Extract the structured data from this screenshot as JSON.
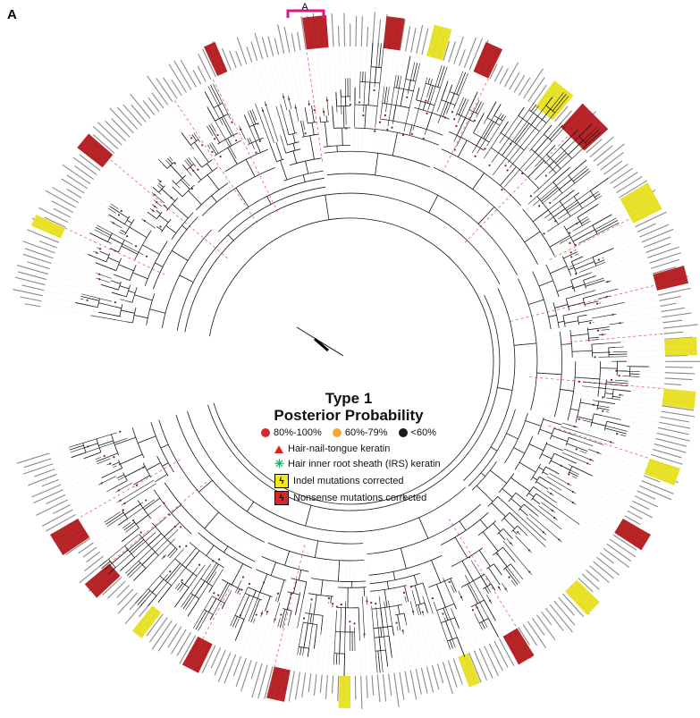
{
  "panel_label": "A",
  "clade_marker": "A",
  "legend": {
    "title_line1": "Type 1",
    "title_line2": "Posterior Probability",
    "pp": [
      {
        "label": "80%-100%",
        "color": "#d7262c"
      },
      {
        "label": "60%-79%",
        "color": "#f4a93c"
      },
      {
        "label": "<60%",
        "color": "#1a1a1a"
      }
    ],
    "hair_nail_tongue": "Hair-nail-tongue keratin",
    "irs": "Hair inner root sheath (IRS) keratin",
    "indel": "Indel mutations corrected",
    "nonsense": "Nonsense mutations corrected"
  },
  "colors": {
    "branch": "#1a1a1a",
    "tip_pp": "#8b1a1a",
    "label_text": "#8a8a8a",
    "leader": "#e86060",
    "indel": "#e8e020",
    "nonsense": "#b3191e",
    "clade_bracket": "#e0138a"
  }
}
